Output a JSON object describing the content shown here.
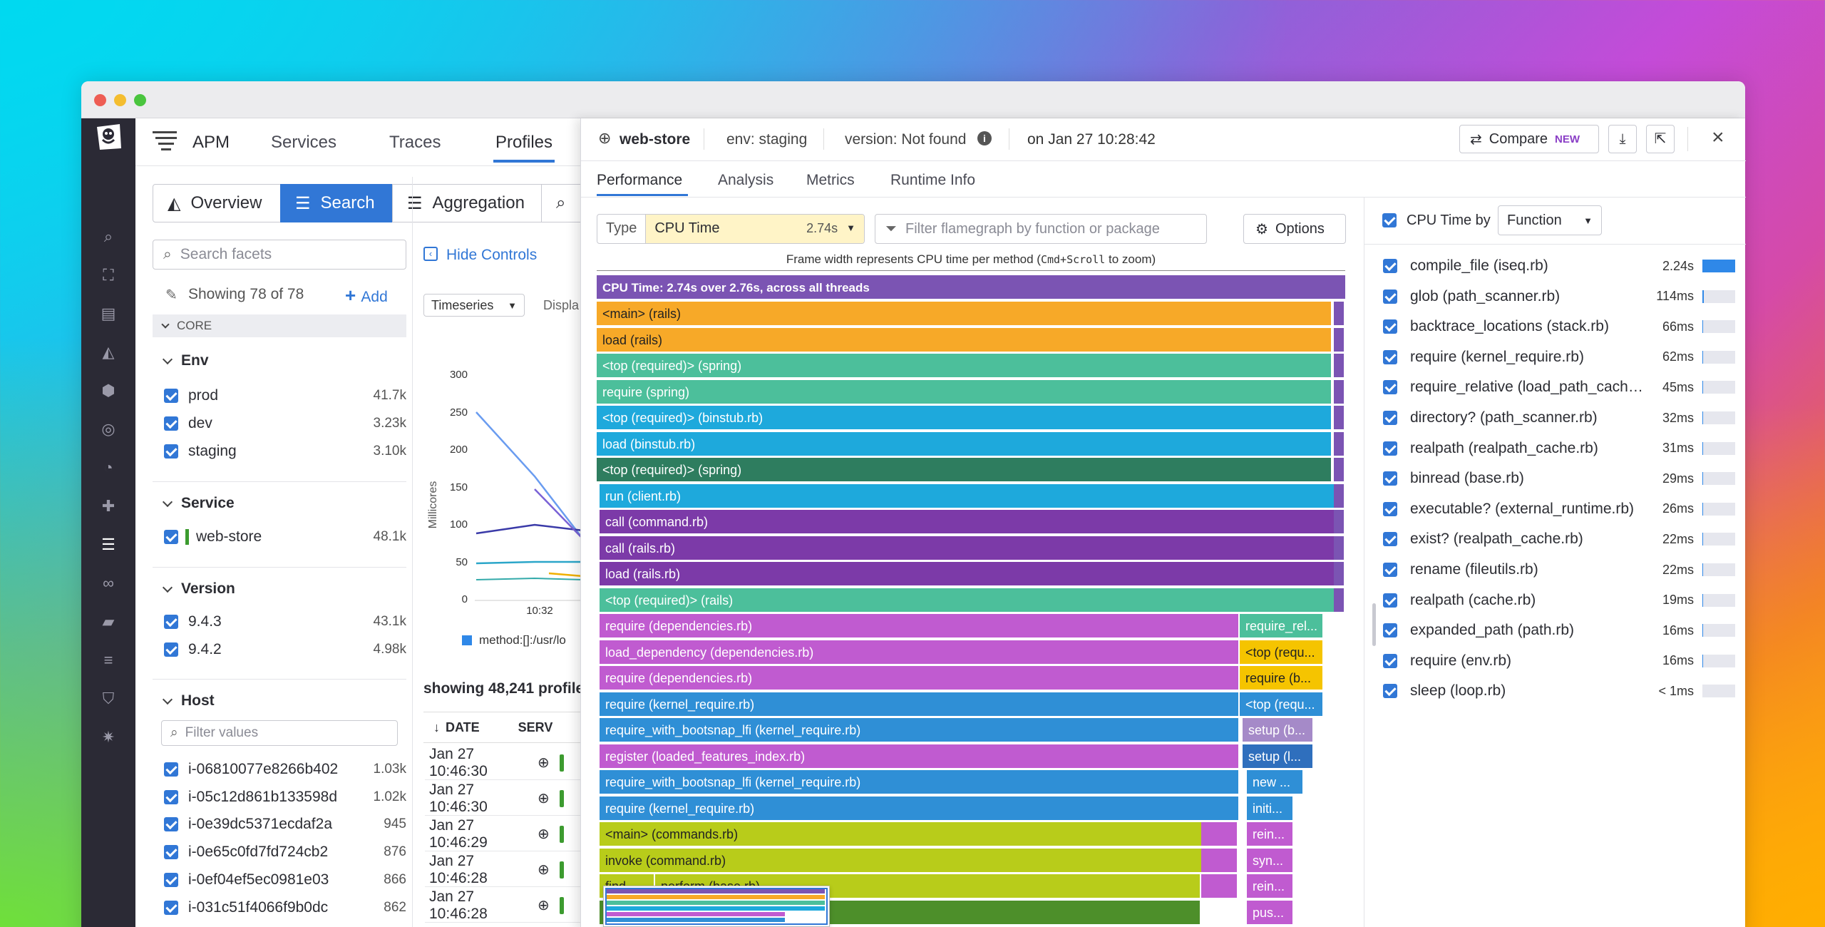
{
  "colors": {
    "accent": "#3177d6",
    "rail": "#2b2a35",
    "flame_header": "#7b54b3"
  },
  "nav": {
    "product": "APM",
    "items": [
      "Services",
      "Traces",
      "Profiles"
    ],
    "active": "Profiles"
  },
  "views": {
    "overview": "Overview",
    "search": "Search",
    "aggregation": "Aggregation"
  },
  "facets": {
    "search_placeholder": "Search facets",
    "showing": "Showing 78 of 78",
    "add": "Add",
    "core": "CORE",
    "env": {
      "title": "Env",
      "items": [
        {
          "label": "prod",
          "count": "41.7k"
        },
        {
          "label": "dev",
          "count": "3.23k"
        },
        {
          "label": "staging",
          "count": "3.10k"
        }
      ]
    },
    "service": {
      "title": "Service",
      "items": [
        {
          "label": "web-store",
          "count": "48.1k"
        }
      ]
    },
    "version": {
      "title": "Version",
      "items": [
        {
          "label": "9.4.3",
          "count": "43.1k"
        },
        {
          "label": "9.4.2",
          "count": "4.98k"
        }
      ]
    },
    "host": {
      "title": "Host",
      "filter_placeholder": "Filter values",
      "items": [
        {
          "label": "i-06810077e8266b402",
          "count": "1.03k"
        },
        {
          "label": "i-05c12d861b133598d",
          "count": "1.02k"
        },
        {
          "label": "i-0e39dc5371ecdaf2a",
          "count": "945"
        },
        {
          "label": "i-0e65c0fd7fd724cb2",
          "count": "876"
        },
        {
          "label": "i-0ef04ef5ec0981e03",
          "count": "866"
        },
        {
          "label": "i-031c51f4066f9b0dc",
          "count": "862"
        }
      ]
    }
  },
  "middle": {
    "hide_controls": "Hide Controls",
    "viz_select": "Timeseries",
    "display_label": "Displa",
    "y_axis_label": "Millicores",
    "y_ticks": [
      "300",
      "250",
      "200",
      "150",
      "100",
      "50",
      "0"
    ],
    "x_tick": "10:32",
    "legend": "method:[]:/usr/lo",
    "showing_profiles": "showing 48,241 profile",
    "col_date": "DATE",
    "col_service": "SERV",
    "rows": [
      "Jan 27 10:46:30",
      "Jan 27 10:46:30",
      "Jan 27 10:46:29",
      "Jan 27 10:46:28",
      "Jan 27 10:46:28"
    ]
  },
  "panel": {
    "service": "web-store",
    "env": "env: staging",
    "version": "version: Not found",
    "timestamp": "on Jan 27 10:28:42",
    "compare": "Compare",
    "new_badge": "NEW",
    "tabs": [
      "Performance",
      "Analysis",
      "Metrics",
      "Runtime Info"
    ],
    "active_tab": "Performance",
    "type_label": "Type",
    "type_value": "CPU Time",
    "type_total": "2.74s",
    "filter_placeholder": "Filter flamegraph by function or package",
    "options": "Options",
    "frame_note_pre": "Frame width represents CPU time per method (",
    "frame_note_code": "Cmd+Scroll",
    "frame_note_post": " to zoom)",
    "flame_header": "CPU Time: 2.74s over 2.76s, across all threads",
    "frames": [
      {
        "label": "<main> (rails)",
        "color": "#f7a928"
      },
      {
        "label": "load (rails)",
        "color": "#f7a928"
      },
      {
        "label": "<top (required)> (spring)",
        "color": "#4cbf9b"
      },
      {
        "label": "require (spring)",
        "color": "#4cbf9b"
      },
      {
        "label": "<top (required)> (binstub.rb)",
        "color": "#1ea9dc"
      },
      {
        "label": "load (binstub.rb)",
        "color": "#1ea9dc"
      },
      {
        "label": "<top (required)> (spring)",
        "color": "#2e7d5f"
      },
      {
        "label": "run (client.rb)",
        "color": "#1ea9dc"
      },
      {
        "label": "call (command.rb)",
        "color": "#7c3aa8"
      },
      {
        "label": "call (rails.rb)",
        "color": "#7c3aa8"
      },
      {
        "label": "load (rails.rb)",
        "color": "#7c3aa8"
      },
      {
        "label": "<top (required)> (rails)",
        "color": "#4cbf9b"
      },
      {
        "label": "require (dependencies.rb)",
        "color": "#c05bd0"
      },
      {
        "label": "load_dependency (dependencies.rb)",
        "color": "#c05bd0"
      },
      {
        "label": "require (dependencies.rb)",
        "color": "#c05bd0"
      },
      {
        "label": "require (kernel_require.rb)",
        "color": "#2f8fd6"
      },
      {
        "label": "require_with_bootsnap_lfi (kernel_require.rb)",
        "color": "#2f8fd6"
      },
      {
        "label": "register (loaded_features_index.rb)",
        "color": "#c05bd0"
      },
      {
        "label": "require_with_bootsnap_lfi (kernel_require.rb)",
        "color": "#2f8fd6"
      },
      {
        "label": "require (kernel_require.rb)",
        "color": "#2f8fd6"
      },
      {
        "label": "<main> (commands.rb)",
        "color": "#b8cc1a"
      },
      {
        "label": "invoke (command.rb)",
        "color": "#b8cc1a"
      }
    ],
    "side_frames": [
      "require_rel...",
      "<top (requ...",
      "require (b...",
      "<top (requ...",
      "setup (b...",
      "setup (l...",
      "new ...",
      "initi...",
      "rein...",
      "syn...",
      "rein...",
      "pus..."
    ],
    "side_frame_lower_right": [
      "perform (base.rb)",
      "find"
    ],
    "right": {
      "title": "CPU Time by",
      "group_by": "Function",
      "rows": [
        {
          "label": "compile_file (iseq.rb)",
          "value": "2.24s",
          "fill": 1.0
        },
        {
          "label": "glob (path_scanner.rb)",
          "value": "114ms",
          "fill": 0.05
        },
        {
          "label": "backtrace_locations (stack.rb)",
          "value": "66ms",
          "fill": 0.03
        },
        {
          "label": "require (kernel_require.rb)",
          "value": "62ms",
          "fill": 0.03
        },
        {
          "label": "require_relative (load_path_cache...",
          "value": "45ms",
          "fill": 0.02
        },
        {
          "label": "directory? (path_scanner.rb)",
          "value": "32ms",
          "fill": 0.015
        },
        {
          "label": "realpath (realpath_cache.rb)",
          "value": "31ms",
          "fill": 0.014
        },
        {
          "label": "binread (base.rb)",
          "value": "29ms",
          "fill": 0.013
        },
        {
          "label": "executable? (external_runtime.rb)",
          "value": "26ms",
          "fill": 0.012
        },
        {
          "label": "exist? (realpath_cache.rb)",
          "value": "22ms",
          "fill": 0.01
        },
        {
          "label": "rename (fileutils.rb)",
          "value": "22ms",
          "fill": 0.01
        },
        {
          "label": "realpath (cache.rb)",
          "value": "19ms",
          "fill": 0.009
        },
        {
          "label": "expanded_path (path.rb)",
          "value": "16ms",
          "fill": 0.007
        },
        {
          "label": "require (env.rb)",
          "value": "16ms",
          "fill": 0.007
        },
        {
          "label": "sleep (loop.rb)",
          "value": "< 1ms",
          "fill": 0.0
        }
      ]
    }
  }
}
